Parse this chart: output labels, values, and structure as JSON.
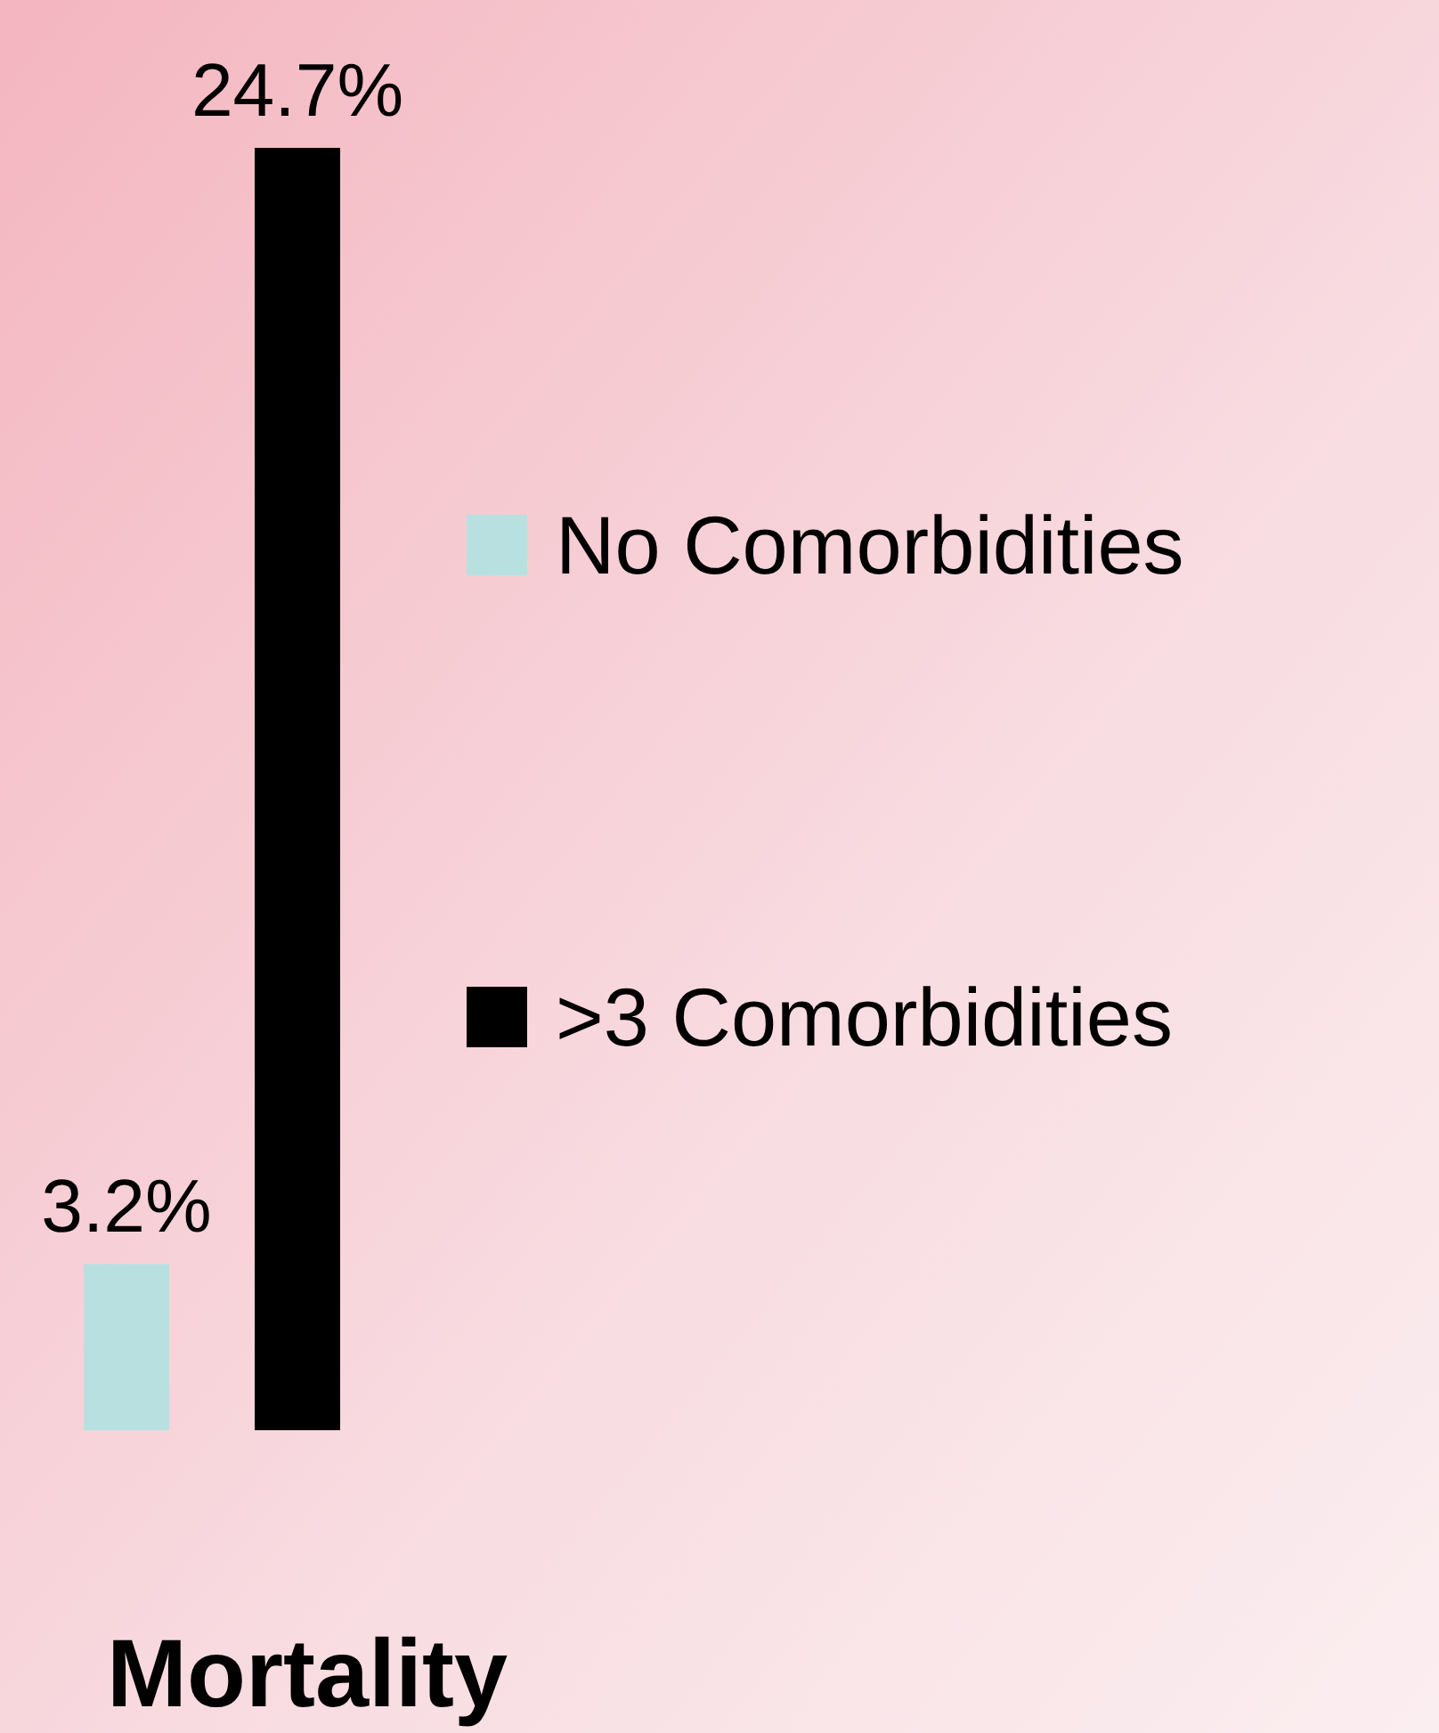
{
  "chart_data": {
    "type": "bar",
    "categories": [
      "Mortality"
    ],
    "series": [
      {
        "name": "No Comorbidities",
        "color": "#b9e0e0",
        "values": [
          3.2
        ],
        "value_labels": [
          "3.2%"
        ]
      },
      {
        "name": ">3 Comorbidities",
        "color": "#000000",
        "values": [
          24.7
        ],
        "value_labels": [
          "24.7%"
        ]
      }
    ],
    "legend": "right"
  }
}
